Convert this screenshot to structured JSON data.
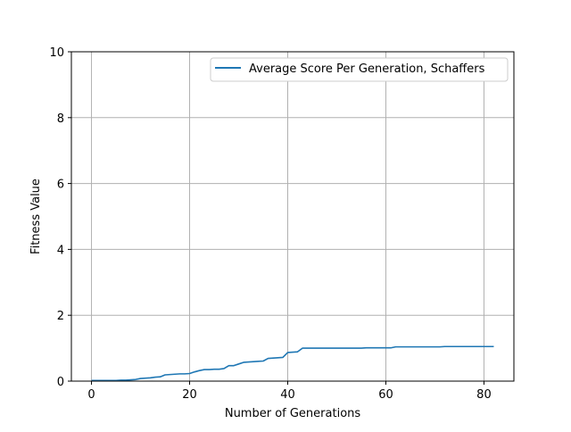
{
  "chart_data": {
    "type": "line",
    "title": "",
    "xlabel": "Number of Generations",
    "ylabel": "Fitness Value",
    "xlim": [
      -4.1,
      86.1
    ],
    "ylim": [
      0,
      10
    ],
    "xticks": [
      0,
      20,
      40,
      60,
      80
    ],
    "yticks": [
      0,
      2,
      4,
      6,
      8,
      10
    ],
    "grid": true,
    "legend_position": "top-right",
    "series": [
      {
        "name": "Average Score Per Generation, Schaffers",
        "color": "#1f77b4",
        "x": [
          0,
          1,
          2,
          3,
          4,
          5,
          6,
          7,
          8,
          9,
          10,
          11,
          12,
          13,
          14,
          15,
          16,
          17,
          18,
          19,
          20,
          21,
          22,
          23,
          24,
          25,
          26,
          27,
          28,
          29,
          30,
          31,
          32,
          33,
          34,
          35,
          36,
          37,
          38,
          39,
          40,
          41,
          42,
          43,
          44,
          45,
          46,
          47,
          48,
          49,
          50,
          51,
          52,
          53,
          54,
          55,
          56,
          57,
          58,
          59,
          60,
          61,
          62,
          63,
          64,
          65,
          66,
          67,
          68,
          69,
          70,
          71,
          72,
          73,
          74,
          75,
          76,
          77,
          78,
          79,
          80,
          81,
          82
        ],
        "y": [
          0.02,
          0.02,
          0.02,
          0.02,
          0.02,
          0.02,
          0.03,
          0.03,
          0.04,
          0.05,
          0.08,
          0.09,
          0.1,
          0.12,
          0.13,
          0.19,
          0.2,
          0.21,
          0.22,
          0.22,
          0.23,
          0.28,
          0.32,
          0.35,
          0.35,
          0.36,
          0.36,
          0.38,
          0.47,
          0.47,
          0.52,
          0.57,
          0.58,
          0.59,
          0.6,
          0.61,
          0.69,
          0.7,
          0.71,
          0.72,
          0.87,
          0.88,
          0.89,
          1.0,
          1.0,
          1.0,
          1.0,
          1.0,
          1.0,
          1.0,
          1.0,
          1.0,
          1.0,
          1.0,
          1.0,
          1.0,
          1.01,
          1.01,
          1.01,
          1.01,
          1.01,
          1.01,
          1.04,
          1.04,
          1.04,
          1.04,
          1.04,
          1.04,
          1.04,
          1.04,
          1.04,
          1.04,
          1.05,
          1.05,
          1.05,
          1.05,
          1.05,
          1.05,
          1.05,
          1.05,
          1.05,
          1.05,
          1.05
        ]
      }
    ]
  }
}
